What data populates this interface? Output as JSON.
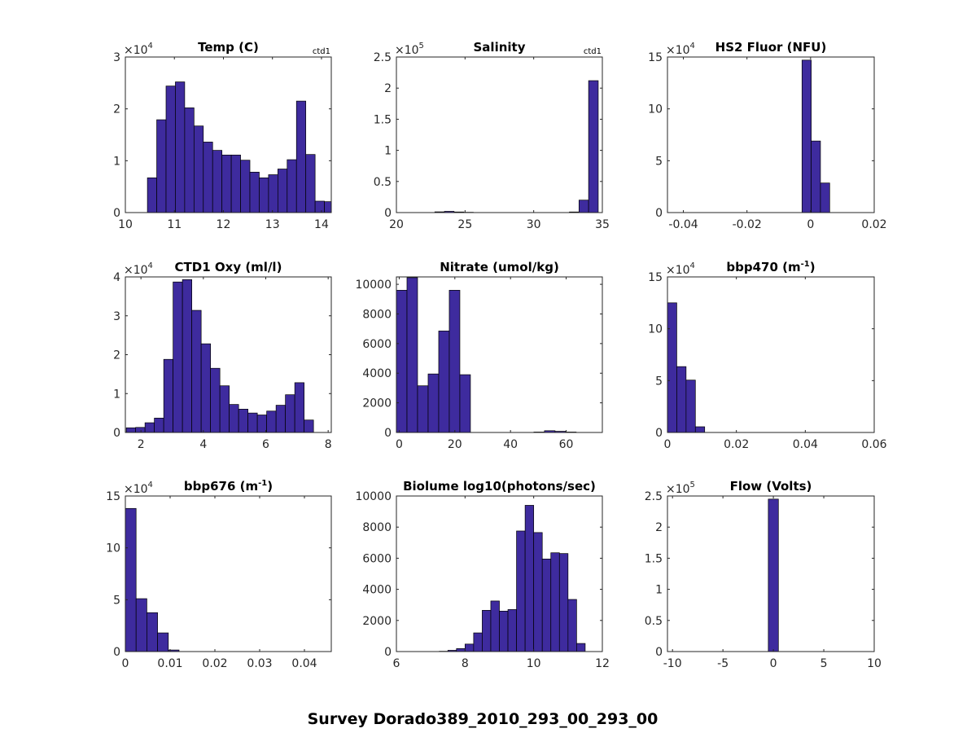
{
  "figure_title": "Survey Dorado389_2010_293_00_293_00",
  "colors": {
    "bar_fill": "#3e2b9e",
    "bar_edge": "#000000"
  },
  "chart_data": [
    {
      "type": "bar",
      "title": "Temp (C)",
      "title_sup": "",
      "title_suffix": "",
      "note": "ctd1",
      "multiplier": {
        "base": "×10",
        "exp": "4"
      },
      "xlim": [
        10,
        14.2
      ],
      "ylim": [
        0,
        3
      ],
      "xticks": [
        10,
        11,
        12,
        13,
        14
      ],
      "xtick_labels": [
        "10",
        "11",
        "12",
        "13",
        "14"
      ],
      "yticks": [
        0,
        1,
        2,
        3
      ],
      "ytick_labels": [
        "0",
        "1",
        "2",
        "3"
      ],
      "bin_start": 10.45,
      "bin_width": 0.19,
      "values": [
        0.67,
        1.79,
        2.44,
        2.52,
        2.02,
        1.67,
        1.36,
        1.2,
        1.11,
        1.11,
        1.01,
        0.78,
        0.67,
        0.73,
        0.84,
        1.02,
        2.15,
        1.12,
        0.22,
        0.21
      ]
    },
    {
      "type": "bar",
      "title": "Salinity",
      "title_sup": "",
      "title_suffix": "",
      "note": "ctd1",
      "multiplier": {
        "base": "×10",
        "exp": "5"
      },
      "xlim": [
        20,
        35
      ],
      "ylim": [
        0,
        2.5
      ],
      "xticks": [
        20,
        25,
        30,
        35
      ],
      "xtick_labels": [
        "20",
        "25",
        "30",
        "35"
      ],
      "yticks": [
        0,
        0.5,
        1,
        1.5,
        2,
        2.5
      ],
      "ytick_labels": [
        "0",
        "0.5",
        "1",
        "1.5",
        "2",
        "2.5"
      ],
      "bin_start": 20.7,
      "bin_width": 0.7,
      "values": [
        0,
        0,
        0,
        0.012,
        0.02,
        0.01,
        0.005,
        0,
        0,
        0,
        0,
        0,
        0,
        0,
        0,
        0,
        0,
        0.01,
        0.2,
        2.12
      ]
    },
    {
      "type": "bar",
      "title": "HS2 Fluor (NFU)",
      "title_sup": "",
      "title_suffix": "",
      "note": "",
      "multiplier": {
        "base": "×10",
        "exp": "4"
      },
      "xlim": [
        -0.045,
        0.02
      ],
      "ylim": [
        0,
        15
      ],
      "xticks": [
        -0.04,
        -0.02,
        0,
        0.02
      ],
      "xtick_labels": [
        "-0.04",
        "-0.02",
        "0",
        "0.02"
      ],
      "yticks": [
        0,
        5,
        10,
        15
      ],
      "ytick_labels": [
        "0",
        "5",
        "10",
        "15"
      ],
      "bin_start": -0.0027,
      "bin_width": 0.0029,
      "values": [
        14.7,
        6.9,
        2.85
      ]
    },
    {
      "type": "bar",
      "title": "CTD1 Oxy (ml/l)",
      "title_sup": "",
      "title_suffix": "",
      "note": "",
      "multiplier": {
        "base": "×10",
        "exp": "4"
      },
      "xlim": [
        1.5,
        8.1
      ],
      "ylim": [
        0,
        4
      ],
      "xticks": [
        2,
        4,
        6,
        8
      ],
      "xtick_labels": [
        "2",
        "4",
        "6",
        "8"
      ],
      "yticks": [
        0,
        1,
        2,
        3,
        4
      ],
      "ytick_labels": [
        "0",
        "1",
        "2",
        "3",
        "4"
      ],
      "bin_start": 1.53,
      "bin_width": 0.3,
      "values": [
        0.12,
        0.13,
        0.25,
        0.37,
        1.88,
        3.87,
        3.93,
        3.14,
        2.28,
        1.65,
        1.2,
        0.72,
        0.6,
        0.5,
        0.45,
        0.55,
        0.7,
        0.97,
        1.28,
        0.32
      ]
    },
    {
      "type": "bar",
      "title": "Nitrate (umol/kg)",
      "title_sup": "",
      "title_suffix": "",
      "note": "",
      "multiplier": null,
      "xlim": [
        -1,
        73
      ],
      "ylim": [
        0,
        10500
      ],
      "xticks": [
        0,
        20,
        40,
        60
      ],
      "xtick_labels": [
        "0",
        "20",
        "40",
        "60"
      ],
      "yticks": [
        0,
        2000,
        4000,
        6000,
        8000,
        10000
      ],
      "ytick_labels": [
        "0",
        "2000",
        "4000",
        "6000",
        "8000",
        "10000"
      ],
      "bin_start": -1,
      "bin_width": 3.8,
      "values": [
        9600,
        10450,
        3150,
        3950,
        6850,
        9600,
        3900,
        0,
        0,
        0,
        0,
        0,
        0,
        30,
        120,
        80,
        30,
        0
      ]
    },
    {
      "type": "bar",
      "title": "bbp470 (m",
      "title_sup": "-1",
      "title_suffix": ")",
      "note": "",
      "multiplier": {
        "base": "×10",
        "exp": "4"
      },
      "xlim": [
        0,
        0.06
      ],
      "ylim": [
        0,
        15
      ],
      "xticks": [
        0,
        0.02,
        0.04,
        0.06
      ],
      "xtick_labels": [
        "0",
        "0.02",
        "0.04",
        "0.06"
      ],
      "yticks": [
        0,
        5,
        10,
        15
      ],
      "ytick_labels": [
        "0",
        "5",
        "10",
        "15"
      ],
      "bin_start": 0,
      "bin_width": 0.0027,
      "values": [
        12.5,
        6.35,
        5.05,
        0.55
      ]
    },
    {
      "type": "bar",
      "title": "bbp676 (m",
      "title_sup": "-1",
      "title_suffix": ")",
      "note": "",
      "multiplier": {
        "base": "×10",
        "exp": "4"
      },
      "xlim": [
        0,
        0.046
      ],
      "ylim": [
        0,
        15
      ],
      "xticks": [
        0,
        0.01,
        0.02,
        0.03,
        0.04
      ],
      "xtick_labels": [
        "0",
        "0.01",
        "0.02",
        "0.03",
        "0.04"
      ],
      "yticks": [
        0,
        5,
        10,
        15
      ],
      "ytick_labels": [
        "0",
        "5",
        "10",
        "15"
      ],
      "bin_start": 0,
      "bin_width": 0.0024,
      "values": [
        13.8,
        5.1,
        3.75,
        1.8,
        0.15,
        0,
        0,
        0,
        0,
        0,
        0,
        0
      ]
    },
    {
      "type": "bar",
      "title": "Biolume log10(photons/sec)",
      "title_sup": "",
      "title_suffix": "",
      "note": "",
      "multiplier": null,
      "xlim": [
        6,
        12
      ],
      "ylim": [
        0,
        10000
      ],
      "xticks": [
        6,
        8,
        10,
        12
      ],
      "xtick_labels": [
        "6",
        "8",
        "10",
        "12"
      ],
      "yticks": [
        0,
        2000,
        4000,
        6000,
        8000,
        10000
      ],
      "ytick_labels": [
        "0",
        "2000",
        "4000",
        "6000",
        "8000",
        "10000"
      ],
      "bin_start": 7.25,
      "bin_width": 0.25,
      "values": [
        20,
        80,
        190,
        480,
        1200,
        2650,
        3250,
        2600,
        2700,
        7750,
        9400,
        7650,
        5950,
        6350,
        6300,
        3350,
        520
      ]
    },
    {
      "type": "bar",
      "title": "Flow (Volts)",
      "title_sup": "",
      "title_suffix": "",
      "note": "",
      "multiplier": {
        "base": "×10",
        "exp": "5"
      },
      "xlim": [
        -10.5,
        10
      ],
      "ylim": [
        0,
        2.5
      ],
      "xticks": [
        -10,
        -5,
        0,
        5,
        10
      ],
      "xtick_labels": [
        "-10",
        "-5",
        "0",
        "5",
        "10"
      ],
      "yticks": [
        0,
        0.5,
        1,
        1.5,
        2,
        2.5
      ],
      "ytick_labels": [
        "0",
        "0.5",
        "1",
        "1.5",
        "2",
        "2.5"
      ],
      "bin_start": -0.5,
      "bin_width": 1.0,
      "values": [
        2.45
      ]
    }
  ]
}
